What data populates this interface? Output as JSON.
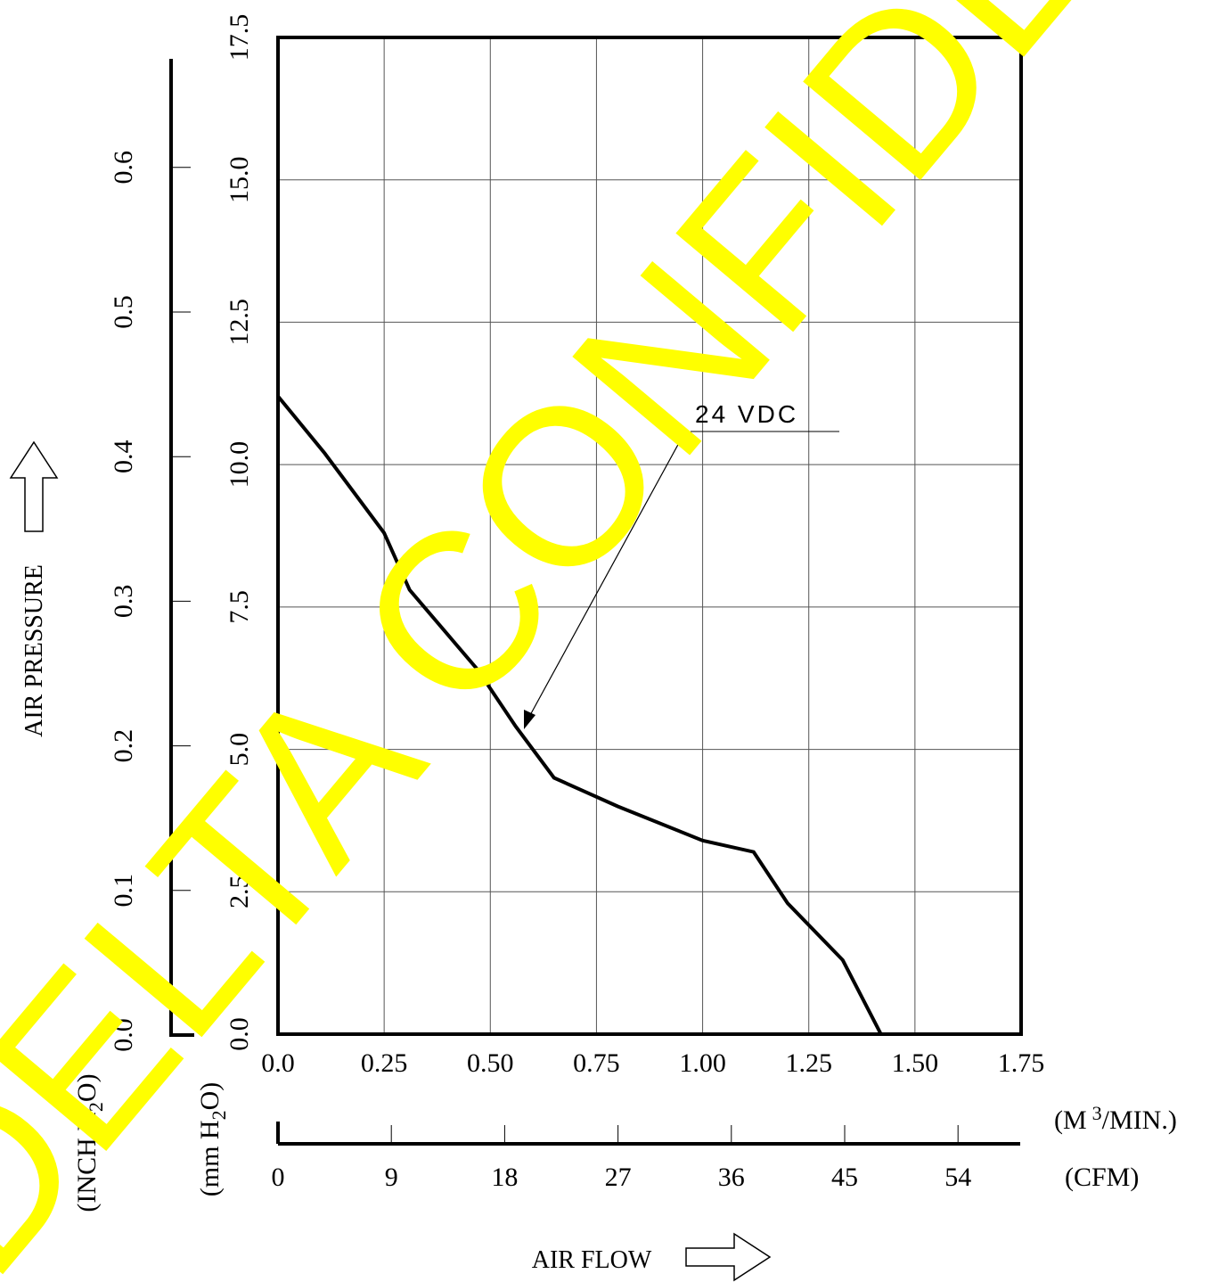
{
  "chart_data": {
    "type": "line",
    "series": [
      {
        "name": "24 VDC",
        "x": [
          0.0,
          0.11,
          0.25,
          0.31,
          0.47,
          0.56,
          0.65,
          0.8,
          1.0,
          1.12,
          1.2,
          1.33,
          1.42
        ],
        "y": [
          11.2,
          10.2,
          8.8,
          7.8,
          6.4,
          5.4,
          4.5,
          4.0,
          3.4,
          3.2,
          2.3,
          1.3,
          0.0
        ]
      }
    ],
    "x_primary": {
      "unit_label": "(M 3/MIN.)",
      "unit_base": "(M",
      "unit_sup": "3",
      "unit_rest": "/MIN.)",
      "ticks": [
        "0.0",
        "0.25",
        "0.50",
        "0.75",
        "1.00",
        "1.25",
        "1.50",
        "1.75"
      ],
      "range": [
        0,
        1.75
      ]
    },
    "x_secondary": {
      "unit_label": "(CFM)",
      "ticks": [
        "0",
        "9",
        "18",
        "27",
        "36",
        "45",
        "54"
      ]
    },
    "y_primary": {
      "unit_label": "(mm H2O)",
      "unit_pre": "(mm H",
      "unit_sub": "2",
      "unit_post": "O)",
      "ticks": [
        "0.0",
        "2.5",
        "5.0",
        "7.5",
        "10.0",
        "12.5",
        "15.0",
        "17.5"
      ],
      "range": [
        0,
        17.5
      ]
    },
    "y_secondary": {
      "unit_label": "(INCH H2O)",
      "unit_pre": "(INCH H",
      "unit_sub": "2",
      "unit_post": "O)",
      "ticks": [
        "0.0",
        "0.1",
        "0.2",
        "0.3",
        "0.4",
        "0.5",
        "0.6"
      ]
    },
    "xlabel": "AIR FLOW",
    "ylabel": "AIR PRESSURE",
    "annotation": "24 VDC",
    "watermark": "DELTA CONFIDENTIAL",
    "watermark_color": "#ffff00",
    "grid": true
  }
}
